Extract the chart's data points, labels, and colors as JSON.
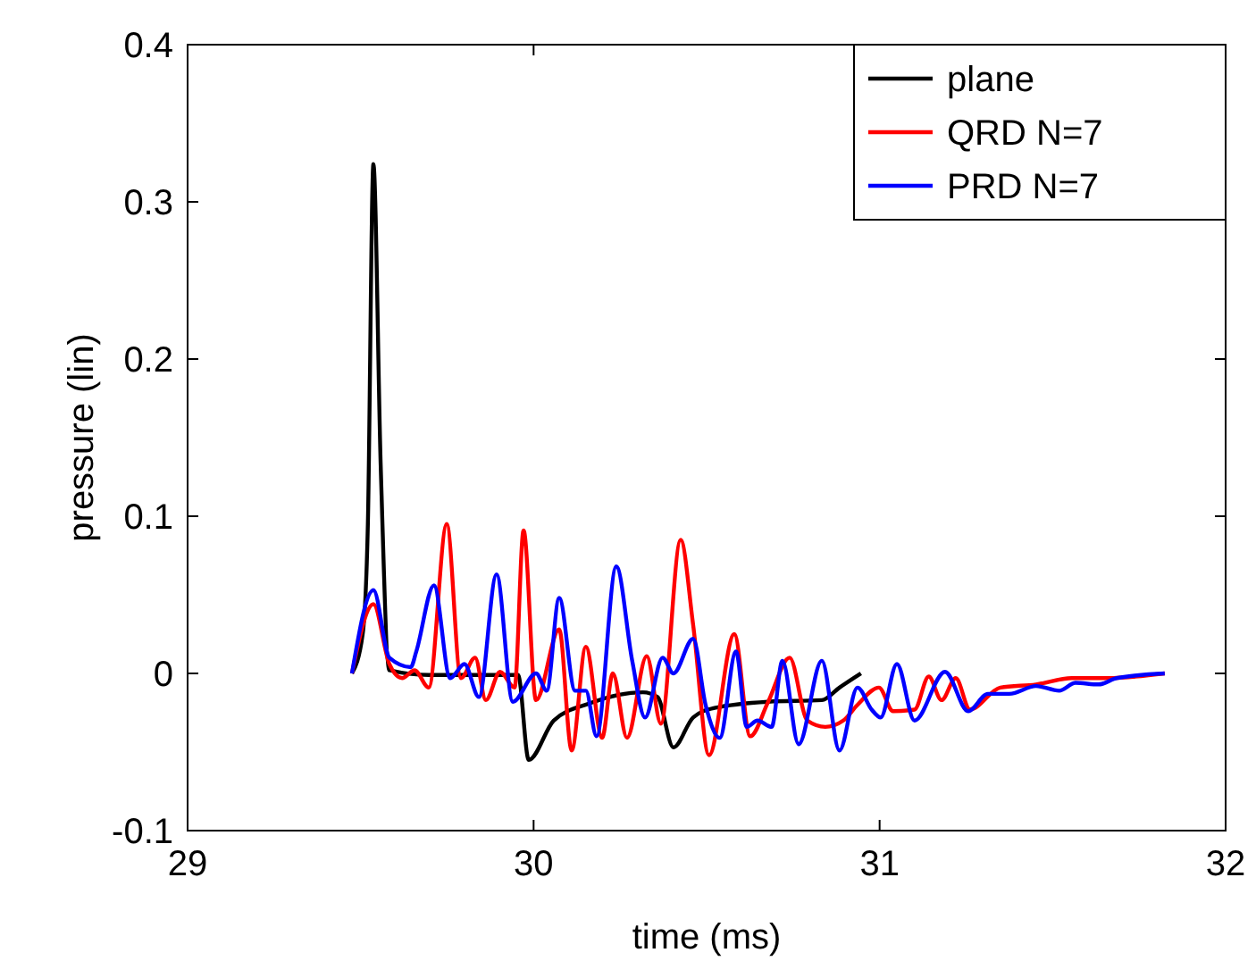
{
  "chart_data": {
    "type": "line",
    "xlabel": "time (ms)",
    "ylabel": "pressure (lin)",
    "xlim": [
      29,
      32
    ],
    "xticks": [
      29,
      30,
      31,
      32
    ],
    "ylim": [
      -0.1,
      0.4
    ],
    "yticks": [
      -0.1,
      0,
      0.1,
      0.2,
      0.3,
      0.4
    ],
    "legend": "top right",
    "grid": false,
    "line_style": "solid",
    "marker": "none",
    "series": [
      {
        "name": "plane",
        "color": "#000000",
        "x": [
          29.475,
          29.506,
          29.521,
          29.537,
          29.558,
          29.583,
          29.697,
          29.955,
          29.986,
          30.058,
          30.162,
          30.316,
          30.358,
          30.404,
          30.461,
          30.523,
          30.678,
          30.833,
          30.884,
          30.946
        ],
        "values": [
          0,
          0.025,
          0.095,
          0.324,
          0.133,
          0.002,
          -0.001,
          -0.001,
          -0.055,
          -0.03,
          -0.019,
          -0.012,
          -0.015,
          -0.047,
          -0.028,
          -0.022,
          -0.018,
          -0.017,
          -0.009,
          0
        ]
      },
      {
        "name": "QRD N=7",
        "color": "#ff0000",
        "x": [
          29.475,
          29.537,
          29.583,
          29.62,
          29.656,
          29.697,
          29.749,
          29.79,
          29.831,
          29.862,
          29.903,
          29.945,
          29.971,
          30.007,
          30.074,
          30.11,
          30.151,
          30.198,
          30.229,
          30.27,
          30.327,
          30.368,
          30.425,
          30.461,
          30.507,
          30.58,
          30.626,
          30.678,
          30.74,
          30.791,
          30.843,
          30.895,
          30.936,
          30.998,
          31.039,
          31.101,
          31.142,
          31.179,
          31.22,
          31.261,
          31.349,
          31.452,
          31.555,
          31.659,
          31.824
        ],
        "values": [
          0,
          0.044,
          0.006,
          -0.003,
          0.002,
          -0.009,
          0.095,
          -0.003,
          0.01,
          -0.017,
          0.001,
          -0.009,
          0.091,
          -0.017,
          0.028,
          -0.049,
          0.017,
          -0.041,
          0,
          -0.041,
          0.011,
          -0.032,
          0.085,
          0.031,
          -0.052,
          0.025,
          -0.04,
          -0.018,
          0.01,
          -0.03,
          -0.034,
          -0.03,
          -0.02,
          -0.009,
          -0.024,
          -0.023,
          -0.002,
          -0.017,
          -0.003,
          -0.023,
          -0.009,
          -0.007,
          -0.003,
          -0.003,
          0
        ]
      },
      {
        "name": "PRD N=7",
        "color": "#0000ff",
        "x": [
          29.475,
          29.537,
          29.583,
          29.645,
          29.661,
          29.712,
          29.759,
          29.8,
          29.842,
          29.893,
          29.94,
          30.007,
          30.038,
          30.074,
          30.12,
          30.151,
          30.182,
          30.239,
          30.285,
          30.322,
          30.373,
          30.404,
          30.461,
          30.497,
          30.538,
          30.585,
          30.616,
          30.647,
          30.688,
          30.719,
          30.766,
          30.833,
          30.884,
          30.936,
          30.977,
          31.003,
          31.05,
          31.101,
          31.189,
          31.256,
          31.313,
          31.375,
          31.452,
          31.519,
          31.566,
          31.633,
          31.685,
          31.824
        ],
        "values": [
          0,
          0.053,
          0.01,
          0.004,
          0.014,
          0.056,
          -0.003,
          0.006,
          -0.015,
          0.063,
          -0.018,
          0,
          -0.011,
          0.048,
          -0.011,
          -0.011,
          -0.04,
          0.068,
          0.008,
          -0.028,
          0.01,
          0,
          0.022,
          -0.02,
          -0.041,
          0.014,
          -0.034,
          -0.03,
          -0.034,
          0.008,
          -0.045,
          0.008,
          -0.049,
          -0.009,
          -0.023,
          -0.028,
          0.006,
          -0.03,
          0.001,
          -0.024,
          -0.013,
          -0.013,
          -0.008,
          -0.011,
          -0.006,
          -0.007,
          -0.003,
          0
        ]
      }
    ]
  }
}
